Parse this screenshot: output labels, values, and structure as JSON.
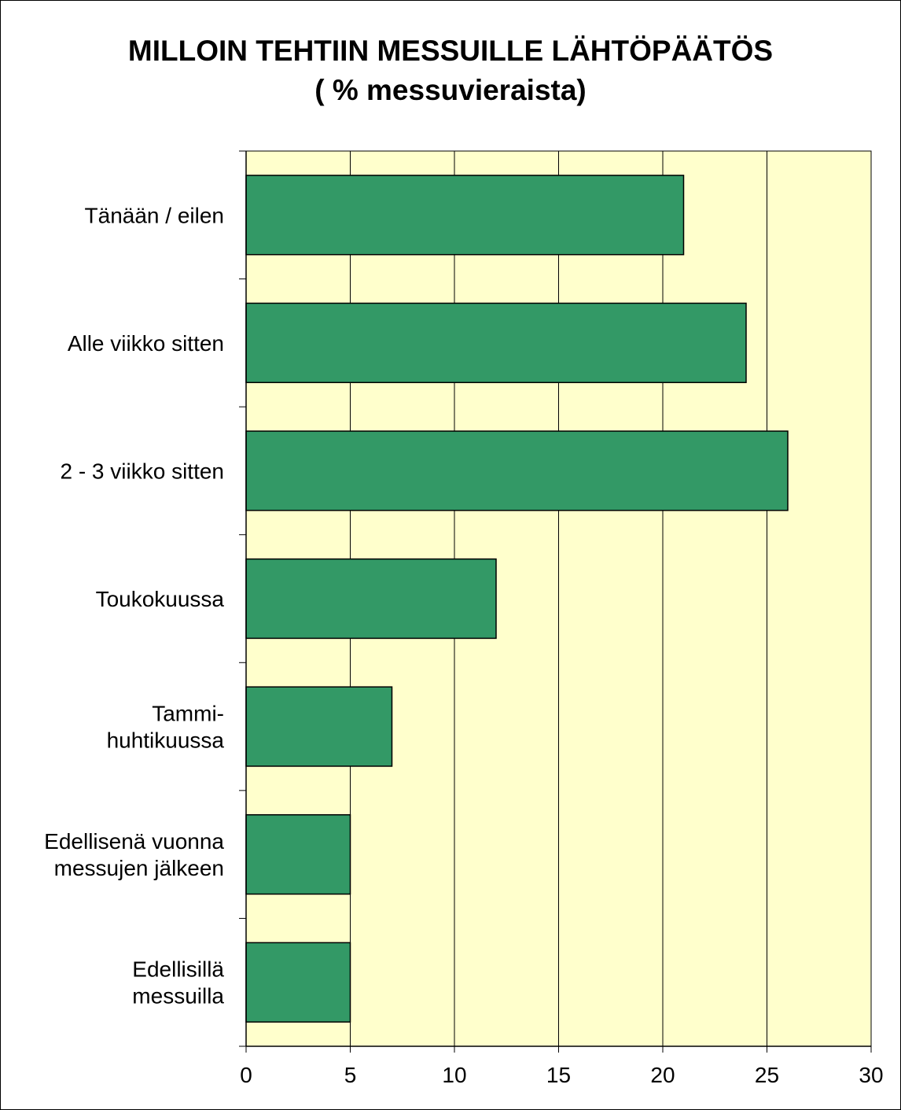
{
  "chart_data": {
    "type": "bar",
    "orientation": "horizontal",
    "title": "MILLOIN TEHTIIN MESSUILLE LÄHTÖPÄÄTÖS",
    "subtitle": "( % messuvieraista)",
    "categories": [
      "Tänään / eilen",
      "Alle viikko sitten",
      "2 - 3 viikko sitten",
      "Toukokuussa",
      "Tammi-\nhuhtikuussa",
      "Edellisenä vuonna\nmessujen jälkeen",
      "Edellisillä\nmessuilla"
    ],
    "values": [
      21,
      24,
      26,
      12,
      7,
      5,
      5
    ],
    "xlim": [
      0,
      30
    ],
    "xticks": [
      "0",
      "5",
      "10",
      "15",
      "20",
      "25",
      "30"
    ],
    "xlabel": "",
    "ylabel": "",
    "grid": "vertical",
    "colors": {
      "bar": "#339966",
      "plot_background": "#FFFFCC",
      "gridline": "#000000",
      "border": "#000000"
    }
  }
}
